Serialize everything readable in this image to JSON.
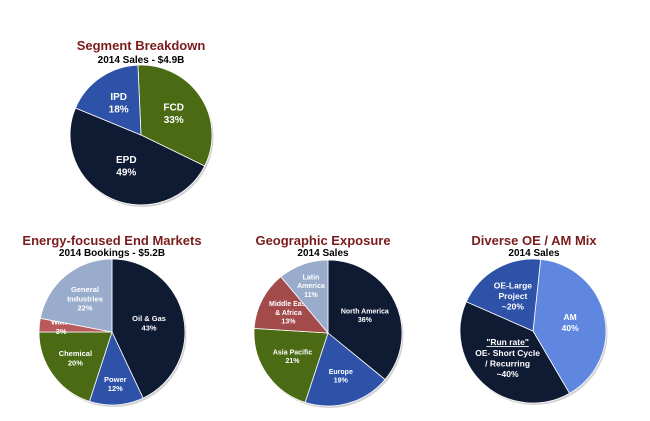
{
  "chart_data": [
    {
      "type": "pie",
      "title": "Segment Breakdown",
      "subtitle": "2014 Sales - $4.9B",
      "slices": [
        {
          "label": "FCD",
          "value": 33,
          "value_label": "33%",
          "color": "#4a6a14"
        },
        {
          "label": "EPD",
          "value": 49,
          "value_label": "49%",
          "color": "#0f1a33"
        },
        {
          "label": "IPD",
          "value": 18,
          "value_label": "18%",
          "color": "#2d52a8"
        }
      ]
    },
    {
      "type": "pie",
      "title": "Energy-focused End Markets",
      "subtitle": "2014 Bookings - $5.2B",
      "slices": [
        {
          "label": "Oil & Gas",
          "value": 43,
          "value_label": "43%",
          "color": "#0f1a33"
        },
        {
          "label": "Power",
          "value": 12,
          "value_label": "12%",
          "color": "#2d52a8"
        },
        {
          "label": "Chemical",
          "value": 20,
          "value_label": "20%",
          "color": "#4a6a14"
        },
        {
          "label": "Water",
          "value": 3,
          "value_label": "3%",
          "color": "#b85a5a"
        },
        {
          "label": "General Industries",
          "value": 22,
          "value_label": "22%",
          "color": "#9aaccb"
        }
      ]
    },
    {
      "type": "pie",
      "title": "Geographic Exposure",
      "subtitle": "2014 Sales",
      "slices": [
        {
          "label": "North America",
          "value": 36,
          "value_label": "36%",
          "color": "#0f1a33"
        },
        {
          "label": "Europe",
          "value": 19,
          "value_label": "19%",
          "color": "#2d52a8"
        },
        {
          "label": "Asia Pacific",
          "value": 21,
          "value_label": "21%",
          "color": "#4a6a14"
        },
        {
          "label": "Middle East & Africa",
          "value": 13,
          "value_label": "13%",
          "color": "#a34a4a"
        },
        {
          "label": "Latin America",
          "value": 11,
          "value_label": "11%",
          "color": "#9aaccb"
        }
      ]
    },
    {
      "type": "pie",
      "title": "Diverse OE / AM Mix",
      "subtitle": "2014 Sales",
      "slices": [
        {
          "label": "AM",
          "value": 40,
          "value_label": "40%",
          "color": "#5f87e0"
        },
        {
          "label_prefix": "\"Run rate\"",
          "label": "OE- Short Cycle / Recurring",
          "value": 40,
          "value_label": "~40%",
          "color": "#0f1a33"
        },
        {
          "label": "OE-Large Project",
          "value": 20,
          "value_label": "~20%",
          "color": "#2d52a8"
        }
      ]
    }
  ]
}
